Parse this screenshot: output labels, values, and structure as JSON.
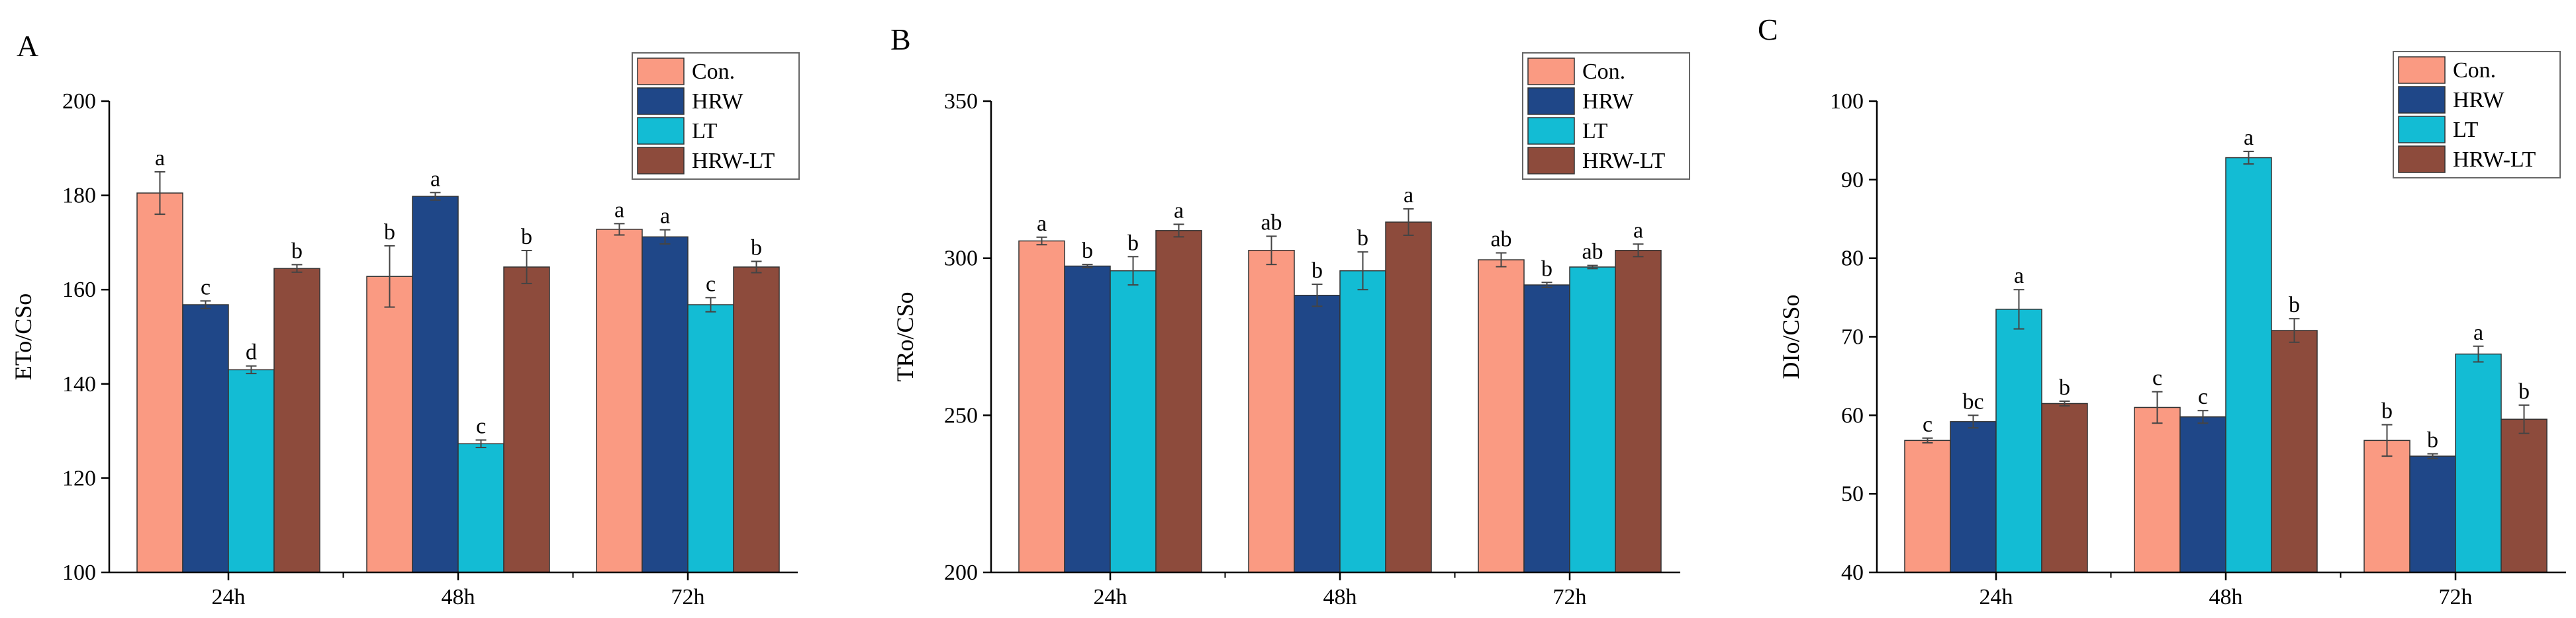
{
  "chart_data": [
    {
      "panel": "A",
      "type": "bar",
      "ylabel": "ETo/CSo",
      "ylim": [
        100,
        200
      ],
      "yticks": [
        100,
        120,
        140,
        160,
        180,
        200
      ],
      "categories": [
        "24h",
        "48h",
        "72h"
      ],
      "series": [
        {
          "name": "Con.",
          "color": "#FA9A82",
          "values": [
            180.5,
            162.8,
            172.8
          ],
          "errors": [
            4.5,
            6.5,
            1.2
          ],
          "labels": [
            "a",
            "b",
            "a"
          ]
        },
        {
          "name": "HRW",
          "color": "#1F4788",
          "values": [
            156.8,
            179.8,
            171.2
          ],
          "errors": [
            0.8,
            0.8,
            1.5
          ],
          "labels": [
            "c",
            "a",
            "a"
          ]
        },
        {
          "name": "LT",
          "color": "#13BCD4",
          "values": [
            143.0,
            127.3,
            156.8
          ],
          "errors": [
            0.8,
            0.8,
            1.5
          ],
          "labels": [
            "d",
            "c",
            "c"
          ]
        },
        {
          "name": "HRW-LT",
          "color": "#8D4B3C",
          "values": [
            164.5,
            164.8,
            164.8
          ],
          "errors": [
            0.8,
            3.5,
            1.2
          ],
          "labels": [
            "b",
            "b",
            "b"
          ]
        }
      ]
    },
    {
      "panel": "B",
      "type": "bar",
      "ylabel": "TRo/CSo",
      "ylim": [
        200,
        350
      ],
      "yticks": [
        200,
        250,
        300,
        350
      ],
      "categories": [
        "24h",
        "48h",
        "72h"
      ],
      "series": [
        {
          "name": "Con.",
          "color": "#FA9A82",
          "values": [
            305.5,
            302.5,
            299.5
          ],
          "errors": [
            1.2,
            4.5,
            2.2
          ],
          "labels": [
            "a",
            "ab",
            "ab"
          ]
        },
        {
          "name": "HRW",
          "color": "#1F4788",
          "values": [
            297.5,
            288.2,
            291.5
          ],
          "errors": [
            0.5,
            3.5,
            0.8
          ],
          "labels": [
            "b",
            "b",
            "b"
          ]
        },
        {
          "name": "LT",
          "color": "#13BCD4",
          "values": [
            296.0,
            296.0,
            297.2
          ],
          "errors": [
            4.5,
            6.0,
            0.5
          ],
          "labels": [
            "b",
            "b",
            "ab"
          ]
        },
        {
          "name": "HRW-LT",
          "color": "#8D4B3C",
          "values": [
            308.8,
            311.5,
            302.5
          ],
          "errors": [
            2.0,
            4.2,
            2.0
          ],
          "labels": [
            "a",
            "a",
            "a"
          ]
        }
      ]
    },
    {
      "panel": "C",
      "type": "bar",
      "ylabel": "DIo/CSo",
      "ylim": [
        40,
        100
      ],
      "yticks": [
        40,
        50,
        60,
        70,
        80,
        90,
        100
      ],
      "categories": [
        "24h",
        "48h",
        "72h"
      ],
      "series": [
        {
          "name": "Con.",
          "color": "#FA9A82",
          "values": [
            56.8,
            61.0,
            56.8
          ],
          "errors": [
            0.3,
            2.0,
            2.0
          ],
          "labels": [
            "c",
            "c",
            "b"
          ]
        },
        {
          "name": "HRW",
          "color": "#1F4788",
          "values": [
            59.2,
            59.8,
            54.8
          ],
          "errors": [
            0.8,
            0.8,
            0.3
          ],
          "labels": [
            "bc",
            "c",
            "b"
          ]
        },
        {
          "name": "LT",
          "color": "#13BCD4",
          "values": [
            73.5,
            92.8,
            67.8
          ],
          "errors": [
            2.5,
            0.8,
            1.0
          ],
          "labels": [
            "a",
            "a",
            "a"
          ]
        },
        {
          "name": "HRW-LT",
          "color": "#8D4B3C",
          "values": [
            61.5,
            70.8,
            59.5
          ],
          "errors": [
            0.3,
            1.5,
            1.8
          ],
          "labels": [
            "b",
            "b",
            "b"
          ]
        }
      ]
    }
  ]
}
